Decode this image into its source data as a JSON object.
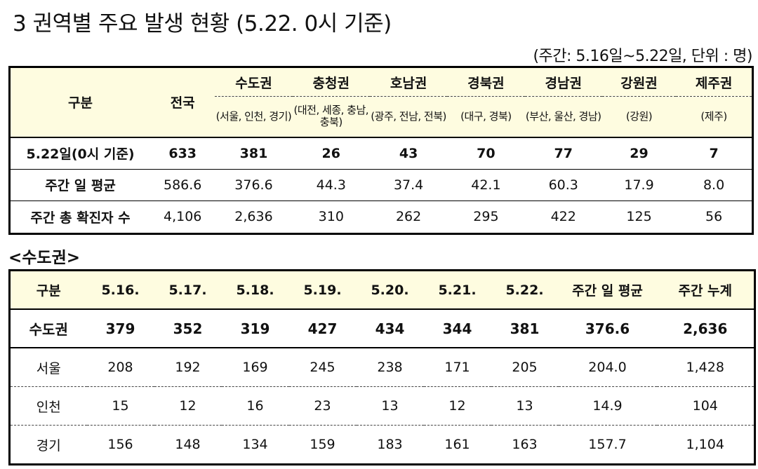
{
  "title": "3  권역별 주요 발생 현황 (5.22. 0시 기준)",
  "unit_note": "(주간: 5.16일~5.22일, 단위 : 명)",
  "t1": {
    "corner": "구분",
    "national": "전국",
    "regions": [
      {
        "name": "수도권",
        "detail": "(서울, 인천, 경기)"
      },
      {
        "name": "충청권",
        "detail": "(대전, 세종, 충남, 충북)"
      },
      {
        "name": "호남권",
        "detail": "(광주, 전남, 전북)"
      },
      {
        "name": "경북권",
        "detail": "(대구, 경북)"
      },
      {
        "name": "경남권",
        "detail": "(부산, 울산, 경남)"
      },
      {
        "name": "강원권",
        "detail": "(강원)"
      },
      {
        "name": "제주권",
        "detail": "(제주)"
      }
    ],
    "rows": [
      {
        "label": "5.22일(0시 기준)",
        "values": [
          "633",
          "381",
          "26",
          "43",
          "70",
          "77",
          "29",
          "7"
        ]
      },
      {
        "label": "주간 일 평균",
        "values": [
          "586.6",
          "376.6",
          "44.3",
          "37.4",
          "42.1",
          "60.3",
          "17.9",
          "8.0"
        ]
      },
      {
        "label": "주간 총 확진자 수",
        "values": [
          "4,106",
          "2,636",
          "310",
          "262",
          "295",
          "422",
          "125",
          "56"
        ]
      }
    ]
  },
  "section2_title": "<수도권>",
  "t2": {
    "headers": [
      "구분",
      "5.16.",
      "5.17.",
      "5.18.",
      "5.19.",
      "5.20.",
      "5.21.",
      "5.22.",
      "주간 일 평균",
      "주간 누계"
    ],
    "rows": [
      {
        "label": "수도권",
        "values": [
          "379",
          "352",
          "319",
          "427",
          "434",
          "344",
          "381",
          "376.6",
          "2,636"
        ]
      },
      {
        "label": "서울",
        "values": [
          "208",
          "192",
          "169",
          "245",
          "238",
          "171",
          "205",
          "204.0",
          "1,428"
        ]
      },
      {
        "label": "인천",
        "values": [
          "15",
          "12",
          "16",
          "23",
          "13",
          "12",
          "13",
          "14.9",
          "104"
        ]
      },
      {
        "label": "경기",
        "values": [
          "156",
          "148",
          "134",
          "159",
          "183",
          "161",
          "163",
          "157.7",
          "1,104"
        ]
      }
    ]
  }
}
